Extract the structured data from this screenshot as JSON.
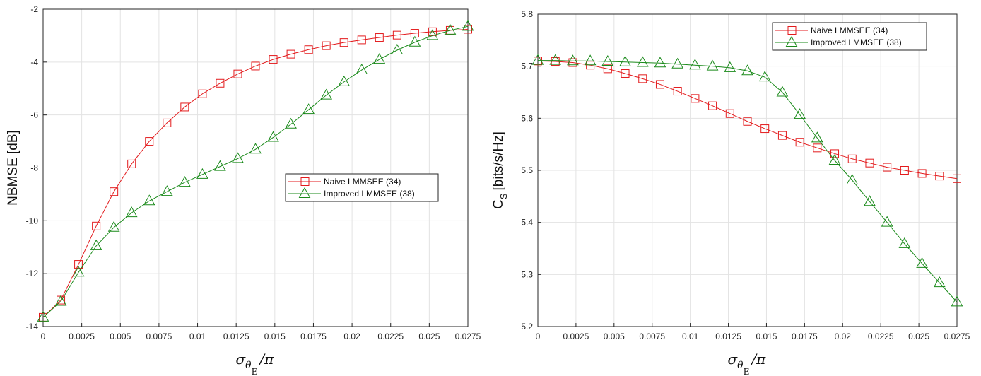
{
  "colors": {
    "naive": "#e31a1c",
    "improved": "#1a8a1a",
    "grid": "#e3e3e3",
    "axis": "#262626"
  },
  "chart_data": [
    {
      "type": "line",
      "xlabel": "σθE/π",
      "ylabel": "NBMSE [dB]",
      "xlim": [
        0,
        0.0275
      ],
      "ylim": [
        -14,
        -2
      ],
      "grid": true,
      "legend": "center-right",
      "x_ticks": [
        "0",
        "0.0025",
        "0.005",
        "0.0075",
        "0.01",
        "0.0125",
        "0.015",
        "0.0175",
        "0.02",
        "0.0225",
        "0.025",
        "0.0275"
      ],
      "y_ticks": [
        "-14",
        "-12",
        "-10",
        "-8",
        "-6",
        "-4",
        "-2"
      ],
      "x": [
        0,
        0.001146,
        0.002292,
        0.003438,
        0.004583,
        0.005729,
        0.006875,
        0.008021,
        0.009167,
        0.010313,
        0.011458,
        0.012604,
        0.01375,
        0.014896,
        0.016042,
        0.017188,
        0.018333,
        0.019479,
        0.020625,
        0.021771,
        0.022917,
        0.024063,
        0.025208,
        0.026354,
        0.0275
      ],
      "series": [
        {
          "name": "Naive LMMSEE (34)",
          "marker": "square",
          "values": [
            -13.65,
            -13.0,
            -11.65,
            -10.2,
            -8.9,
            -7.85,
            -7.0,
            -6.3,
            -5.7,
            -5.2,
            -4.8,
            -4.45,
            -4.15,
            -3.9,
            -3.7,
            -3.53,
            -3.38,
            -3.26,
            -3.16,
            -3.07,
            -2.98,
            -2.91,
            -2.85,
            -2.8,
            -2.76
          ]
        },
        {
          "name": "Improved LMMSEE (38)",
          "marker": "triangle",
          "values": [
            -13.65,
            -13.05,
            -11.95,
            -10.95,
            -10.25,
            -9.7,
            -9.25,
            -8.9,
            -8.55,
            -8.25,
            -7.95,
            -7.65,
            -7.3,
            -6.85,
            -6.35,
            -5.8,
            -5.25,
            -4.75,
            -4.3,
            -3.9,
            -3.55,
            -3.25,
            -3.0,
            -2.8,
            -2.65
          ]
        }
      ]
    },
    {
      "type": "line",
      "xlabel": "σθE/π",
      "ylabel": "CS [bits/s/Hz]",
      "xlim": [
        0,
        0.0275
      ],
      "ylim": [
        5.2,
        5.8
      ],
      "grid": true,
      "legend": "top-right",
      "x_ticks": [
        "0",
        "0.0025",
        "0.005",
        "0.0075",
        "0.01",
        "0.0125",
        "0.015",
        "0.0175",
        "0.02",
        "0.0225",
        "0.025",
        "0.0275"
      ],
      "y_ticks": [
        "5.2",
        "5.3",
        "5.4",
        "5.5",
        "5.6",
        "5.7",
        "5.8"
      ],
      "x": [
        0,
        0.001146,
        0.002292,
        0.003438,
        0.004583,
        0.005729,
        0.006875,
        0.008021,
        0.009167,
        0.010313,
        0.011458,
        0.012604,
        0.01375,
        0.014896,
        0.016042,
        0.017188,
        0.018333,
        0.019479,
        0.020625,
        0.021771,
        0.022917,
        0.024063,
        0.025208,
        0.026354,
        0.0275
      ],
      "series": [
        {
          "name": "Naive LMMSEE (34)",
          "marker": "square",
          "values": [
            5.71,
            5.709,
            5.707,
            5.702,
            5.695,
            5.686,
            5.676,
            5.665,
            5.652,
            5.638,
            5.624,
            5.609,
            5.594,
            5.58,
            5.567,
            5.554,
            5.543,
            5.532,
            5.522,
            5.514,
            5.506,
            5.5,
            5.494,
            5.489,
            5.484
          ]
        },
        {
          "name": "Improved LMMSEE (38)",
          "marker": "triangle",
          "values": [
            5.711,
            5.711,
            5.71,
            5.71,
            5.709,
            5.708,
            5.707,
            5.706,
            5.704,
            5.702,
            5.7,
            5.697,
            5.691,
            5.679,
            5.65,
            5.607,
            5.562,
            5.519,
            5.481,
            5.44,
            5.4,
            5.359,
            5.321,
            5.284,
            5.247
          ]
        }
      ]
    }
  ]
}
